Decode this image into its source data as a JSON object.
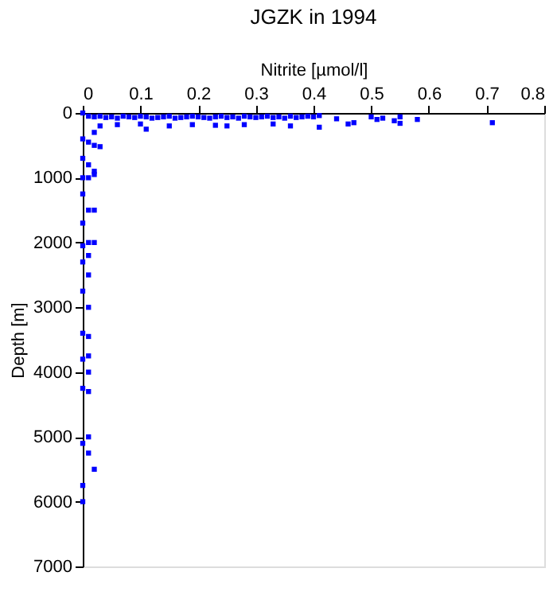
{
  "chart_data": {
    "type": "scatter",
    "title": "JGZK in 1994",
    "xlabel": "Nitrite [µmol/l]",
    "ylabel": "Depth [m]",
    "xlim": [
      0,
      0.8
    ],
    "xticks": [
      0,
      0.1,
      0.2,
      0.3,
      0.4,
      0.5,
      0.6,
      0.7,
      0.8
    ],
    "ylim": [
      7000,
      0
    ],
    "yticks": [
      0,
      1000,
      2000,
      3000,
      4000,
      5000,
      6000,
      7000
    ],
    "marker": "square",
    "grid": false,
    "series": [
      {
        "color": "#0000ff",
        "x": [
          0.0,
          0.01,
          0.02,
          0.03,
          0.04,
          0.05,
          0.06,
          0.07,
          0.08,
          0.09,
          0.1,
          0.11,
          0.12,
          0.13,
          0.14,
          0.15,
          0.16,
          0.17,
          0.18,
          0.19,
          0.2,
          0.21,
          0.22,
          0.23,
          0.24,
          0.25,
          0.26,
          0.27,
          0.28,
          0.29,
          0.3,
          0.31,
          0.32,
          0.33,
          0.34,
          0.35,
          0.36,
          0.37,
          0.38,
          0.39,
          0.4,
          0.41,
          0.44,
          0.47,
          0.5,
          0.51,
          0.52,
          0.54,
          0.55,
          0.58,
          0.71,
          0.03,
          0.06,
          0.1,
          0.11,
          0.15,
          0.19,
          0.23,
          0.25,
          0.28,
          0.33,
          0.36,
          0.41,
          0.46,
          0.55,
          0.02,
          0.0,
          0.01,
          0.02,
          0.03,
          0.0,
          0.01,
          0.02,
          0.0,
          0.01,
          0.02,
          0.0,
          0.01,
          0.0,
          0.01,
          0.0,
          0.01,
          0.0,
          0.01,
          0.0,
          0.01,
          0.0,
          0.01,
          0.0,
          0.01,
          0.0,
          0.01,
          0.0,
          0.01,
          0.0,
          0.0,
          0.02,
          0.01,
          0.02,
          0.01,
          0.02
        ],
        "values": [
          0,
          50,
          60,
          50,
          70,
          60,
          80,
          50,
          60,
          70,
          50,
          60,
          80,
          70,
          60,
          50,
          80,
          70,
          60,
          50,
          60,
          70,
          80,
          60,
          50,
          70,
          60,
          80,
          50,
          60,
          70,
          60,
          50,
          70,
          60,
          80,
          50,
          70,
          60,
          50,
          60,
          40,
          90,
          150,
          60,
          100,
          80,
          120,
          60,
          100,
          150,
          200,
          180,
          170,
          250,
          200,
          180,
          190,
          200,
          180,
          170,
          200,
          220,
          170,
          160,
          300,
          400,
          450,
          500,
          520,
          700,
          800,
          900,
          1000,
          1000,
          950,
          1250,
          1500,
          1700,
          2000,
          2050,
          2200,
          2300,
          2500,
          2750,
          3000,
          3400,
          3450,
          3800,
          4000,
          4250,
          5000,
          5100,
          5250,
          5750,
          6000,
          1500,
          3750,
          2000,
          4300,
          5500
        ]
      }
    ]
  }
}
